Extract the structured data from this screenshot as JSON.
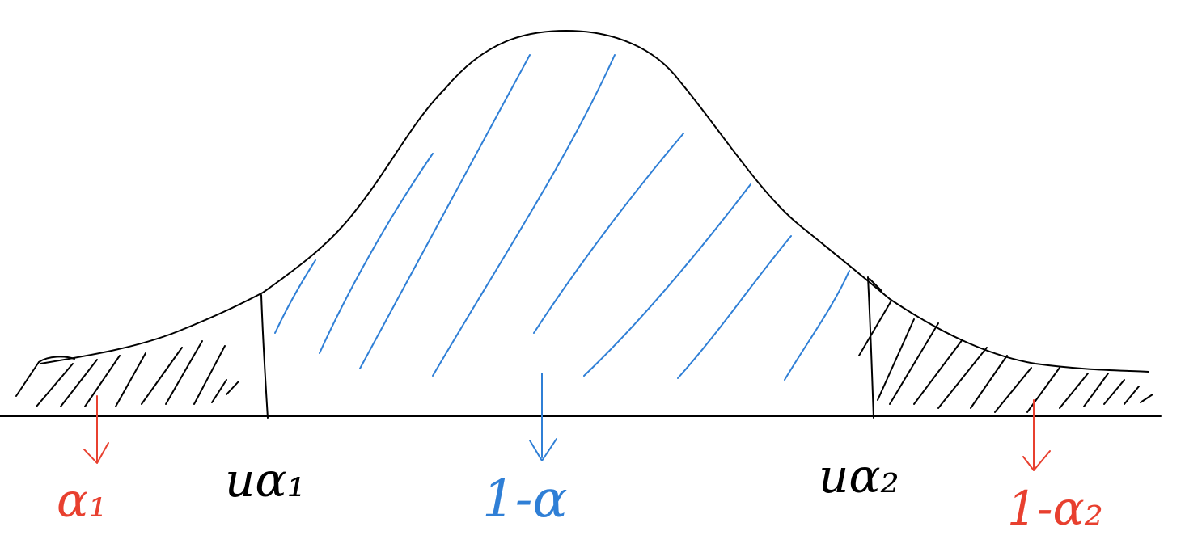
{
  "diagram": {
    "labels": {
      "left_tail": "α₁",
      "critical_left": "uα₁",
      "center_area": "1-α",
      "critical_right": "uα₂",
      "right_tail": "1-α₂"
    },
    "colors": {
      "curve": "#000000",
      "center_region": "#2f7fd6",
      "tail_annotations": "#e8402f"
    }
  }
}
